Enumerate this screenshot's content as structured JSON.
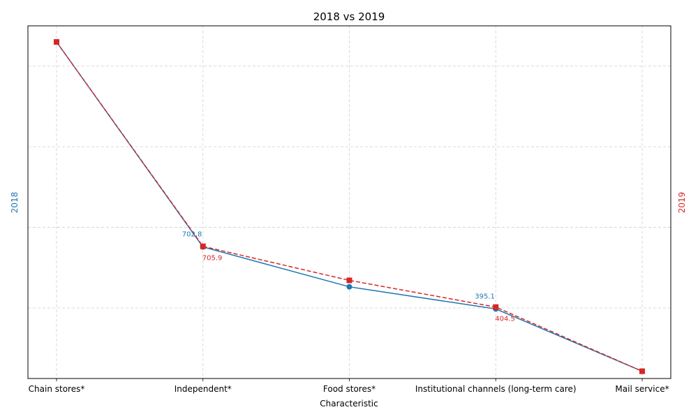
{
  "chart_data": {
    "type": "line",
    "title": "2018 vs 2019",
    "xlabel": "Characteristic",
    "ylabel_left": "2018",
    "ylabel_right": "2019",
    "categories": [
      "Chain stores*",
      "Independent*",
      "Food stores*",
      "Institutional channels (long-term care)",
      "Mail service*"
    ],
    "ylim": [
      50,
      1800
    ],
    "grid": true,
    "series": [
      {
        "name": "2018",
        "axis": "left",
        "color": "#1f77b4",
        "line_style": "solid",
        "marker": "circle",
        "values": [
          1720,
          702.8,
          505,
          395.1,
          86
        ],
        "labels": [
          "",
          "702.8",
          "",
          "395.1",
          ""
        ]
      },
      {
        "name": "2019",
        "axis": "right",
        "color": "#d62728",
        "line_style": "dashed",
        "marker": "square",
        "values": [
          1720,
          705.9,
          537,
          404.5,
          86
        ],
        "labels": [
          "",
          "705.9",
          "",
          "404.5",
          ""
        ]
      }
    ]
  }
}
